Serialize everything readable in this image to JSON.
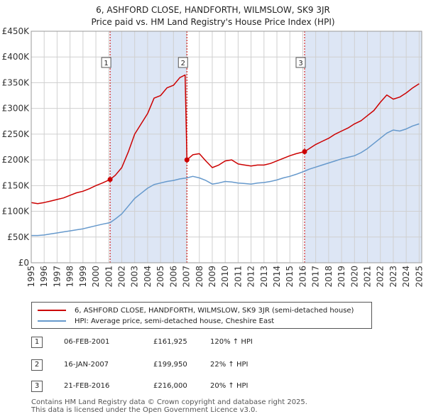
{
  "title": {
    "line1": "6, ASHFORD CLOSE, HANDFORTH, WILMSLOW, SK9 3JR",
    "line2": "Price paid vs. HM Land Registry's House Price Index (HPI)"
  },
  "colors": {
    "property_line": "#cc0000",
    "hpi_line": "#6699cc",
    "shade": "#dde6f5",
    "grid": "#d0d0d0",
    "marker_dash": "#cc0000"
  },
  "chart_data": {
    "type": "line",
    "title": "6, ASHFORD CLOSE, HANDFORTH, WILMSLOW, SK9 3JR — Price paid vs. HM Land Registry's House Price Index (HPI)",
    "xlabel": "",
    "ylabel": "",
    "xlim": [
      1995,
      2025.2
    ],
    "ylim": [
      0,
      450000
    ],
    "grid": true,
    "y_ticks": [
      0,
      50000,
      100000,
      150000,
      200000,
      250000,
      300000,
      350000,
      400000,
      450000
    ],
    "y_tick_labels": [
      "£0",
      "£50K",
      "£100K",
      "£150K",
      "£200K",
      "£250K",
      "£300K",
      "£350K",
      "£400K",
      "£450K"
    ],
    "x_ticks": [
      1995,
      1996,
      1997,
      1998,
      1999,
      2000,
      2001,
      2002,
      2003,
      2004,
      2005,
      2006,
      2007,
      2008,
      2009,
      2010,
      2011,
      2012,
      2013,
      2014,
      2015,
      2016,
      2017,
      2018,
      2019,
      2020,
      2021,
      2022,
      2023,
      2024,
      2025
    ],
    "x_tick_labels": [
      "1995",
      "1996",
      "1997",
      "1998",
      "1999",
      "2000",
      "2001",
      "2002",
      "2003",
      "2004",
      "2005",
      "2006",
      "2007",
      "2008",
      "2009",
      "2010",
      "2011",
      "2012",
      "2013",
      "2014",
      "2015",
      "2016",
      "2017",
      "2018",
      "2019",
      "2020",
      "2021",
      "2022",
      "2023",
      "2024",
      "2025"
    ],
    "shaded_spans": [
      [
        2001.1,
        2007.04
      ],
      [
        2016.14,
        2025.2
      ]
    ],
    "series": [
      {
        "name": "6, ASHFORD CLOSE, HANDFORTH, WILMSLOW, SK9 3JR (semi-detached house)",
        "x": [
          1995,
          1995.5,
          1996,
          1996.5,
          1997,
          1997.5,
          1998,
          1998.5,
          1999,
          1999.5,
          2000,
          2000.5,
          2001.1,
          2001.5,
          2002,
          2002.5,
          2003,
          2003.5,
          2004,
          2004.5,
          2005,
          2005.5,
          2006,
          2006.5,
          2006.9,
          2007.04,
          2007.5,
          2008,
          2008.5,
          2009,
          2009.5,
          2010,
          2010.5,
          2011,
          2011.5,
          2012,
          2012.5,
          2013,
          2013.5,
          2014,
          2014.5,
          2015,
          2015.5,
          2016.14,
          2016.5,
          2017,
          2017.5,
          2018,
          2018.5,
          2019,
          2019.5,
          2020,
          2020.5,
          2021,
          2021.5,
          2022,
          2022.5,
          2023,
          2023.5,
          2024,
          2024.5,
          2025
        ],
        "values": [
          117000,
          115000,
          117000,
          120000,
          123000,
          126000,
          131000,
          136000,
          139000,
          144000,
          150000,
          155000,
          161925,
          170000,
          185000,
          215000,
          250000,
          270000,
          290000,
          320000,
          325000,
          340000,
          345000,
          360000,
          365000,
          199950,
          210000,
          212000,
          198000,
          185000,
          190000,
          198000,
          200000,
          192000,
          190000,
          188000,
          190000,
          190000,
          193000,
          198000,
          203000,
          208000,
          212000,
          216000,
          222000,
          230000,
          236000,
          242000,
          250000,
          256000,
          262000,
          270000,
          276000,
          286000,
          296000,
          312000,
          326000,
          318000,
          322000,
          330000,
          340000,
          348000
        ]
      },
      {
        "name": "HPI: Average price, semi-detached house, Cheshire East",
        "x": [
          1995,
          1995.5,
          1996,
          1996.5,
          1997,
          1997.5,
          1998,
          1998.5,
          1999,
          1999.5,
          2000,
          2000.5,
          2001.1,
          2001.5,
          2002,
          2002.5,
          2003,
          2003.5,
          2004,
          2004.5,
          2005,
          2005.5,
          2006,
          2006.5,
          2007.04,
          2007.5,
          2008,
          2008.5,
          2009,
          2009.5,
          2010,
          2010.5,
          2011,
          2011.5,
          2012,
          2012.5,
          2013,
          2013.5,
          2014,
          2014.5,
          2015,
          2015.5,
          2016.14,
          2016.5,
          2017,
          2017.5,
          2018,
          2018.5,
          2019,
          2019.5,
          2020,
          2020.5,
          2021,
          2021.5,
          2022,
          2022.5,
          2023,
          2023.5,
          2024,
          2024.5,
          2025
        ],
        "values": [
          53000,
          53000,
          54000,
          56000,
          58000,
          60000,
          62000,
          64000,
          66000,
          69000,
          72000,
          75000,
          78000,
          85000,
          95000,
          110000,
          125000,
          135000,
          145000,
          152000,
          155000,
          158000,
          160000,
          163000,
          165000,
          168000,
          165000,
          160000,
          153000,
          155000,
          158000,
          157000,
          155000,
          154000,
          153000,
          155000,
          156000,
          158000,
          161000,
          165000,
          168000,
          172000,
          178000,
          182000,
          186000,
          190000,
          194000,
          198000,
          202000,
          205000,
          208000,
          214000,
          222000,
          232000,
          242000,
          252000,
          258000,
          256000,
          260000,
          266000,
          270000
        ]
      }
    ],
    "sale_markers": [
      {
        "label": "1",
        "x": 2001.1,
        "value": 161925
      },
      {
        "label": "2",
        "x": 2007.04,
        "value": 199950
      },
      {
        "label": "3",
        "x": 2016.14,
        "value": 216000
      }
    ]
  },
  "legend": {
    "property_label": "6, ASHFORD CLOSE, HANDFORTH, WILMSLOW, SK9 3JR (semi-detached house)",
    "hpi_label": "HPI: Average price, semi-detached house, Cheshire East"
  },
  "sales": [
    {
      "num": "1",
      "date": "06-FEB-2001",
      "price": "£161,925",
      "hpi": "120% ↑ HPI"
    },
    {
      "num": "2",
      "date": "16-JAN-2007",
      "price": "£199,950",
      "hpi": "22% ↑ HPI"
    },
    {
      "num": "3",
      "date": "21-FEB-2016",
      "price": "£216,000",
      "hpi": "20% ↑ HPI"
    }
  ],
  "footer": {
    "line1": "Contains HM Land Registry data © Crown copyright and database right 2025.",
    "line2": "This data is licensed under the Open Government Licence v3.0."
  }
}
